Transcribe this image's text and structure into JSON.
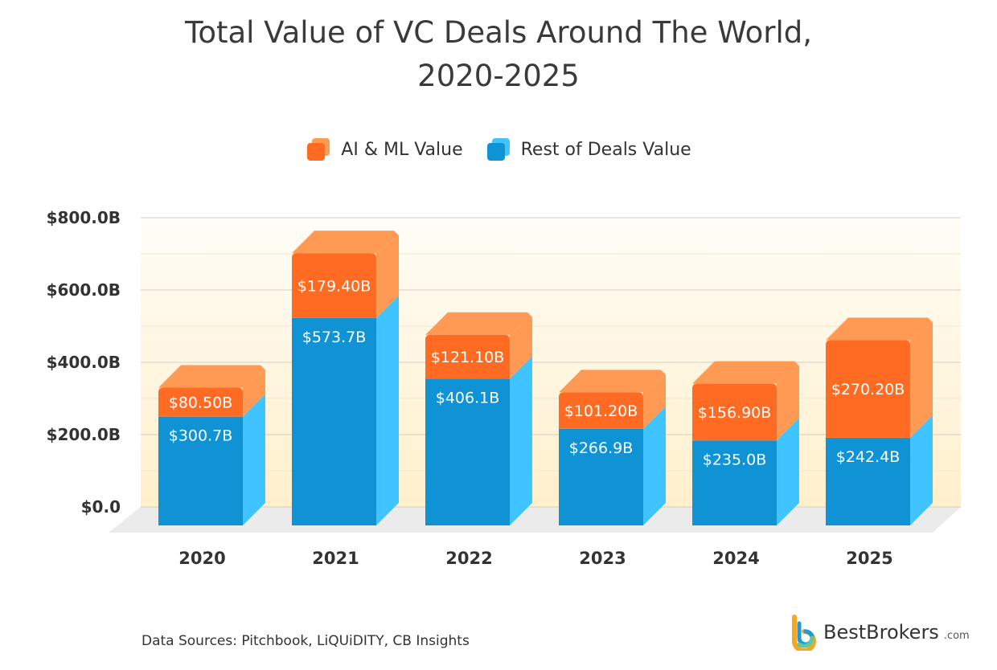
{
  "chart_data": {
    "type": "bar",
    "stacked": true,
    "title": "Total Value of VC Deals Around The World,",
    "title_line2": "2020-2025",
    "categories": [
      "2020",
      "2021",
      "2022",
      "2023",
      "2024",
      "2025"
    ],
    "series": [
      {
        "name": "Rest of Deals Value",
        "values": [
          300.7,
          573.7,
          406.1,
          266.9,
          235.0,
          242.4
        ],
        "labels": [
          "$300.7B",
          "$573.7B",
          "$406.1B",
          "$266.9B",
          "$235.0B",
          "$242.4B"
        ],
        "color": "#0f93d4",
        "side_color": "#40c4ff"
      },
      {
        "name": "AI & ML Value",
        "values": [
          80.5,
          179.4,
          121.1,
          101.2,
          156.9,
          270.2
        ],
        "labels": [
          "$80.50B",
          "$179.40B",
          "$121.10B",
          "$101.20B",
          "$156.90B",
          "$270.20B"
        ],
        "color": "#ff6b22",
        "top_color": "#ff9a55"
      }
    ],
    "yticks": [
      "$0.0",
      "$200.0B",
      "$400.0B",
      "$600.0B",
      "$800.0B"
    ],
    "ylim": [
      0,
      800
    ],
    "grid": true,
    "legend": "top",
    "units": "USD billions"
  },
  "legend": {
    "ai": "AI & ML Value",
    "rest": "Rest of Deals Value"
  },
  "source": "Data Sources: Pitchbook, LiQUiDITY, CB Insights",
  "logo": {
    "name": "BestBrokers",
    "suffix": ".com"
  }
}
